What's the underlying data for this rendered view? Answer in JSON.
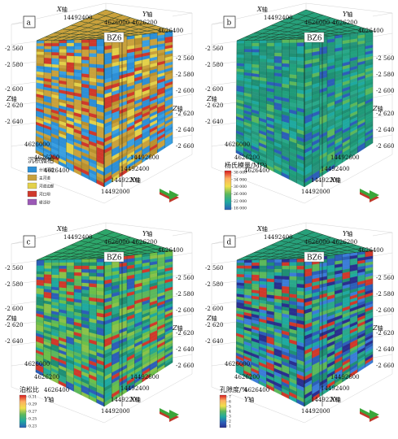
{
  "panels": [
    {
      "tag": "a",
      "well": "BZ6",
      "axes": {
        "x_name": "X",
        "y_name": "Y",
        "z_name": "Z",
        "unit": "轴",
        "x_top_ticks": [
          "14492400",
          "4626000"
        ],
        "y_top_ticks": [
          "4626200",
          "4626400"
        ],
        "z_left_ticks": [
          "-2 560",
          "-2 580",
          "-2 600",
          "-2 620",
          "-2 640"
        ],
        "z_right_ticks": [
          "-2 560",
          "-2 580",
          "-2 600",
          "-2 620",
          "-2 640",
          "-2 660"
        ],
        "bottom_left_ticks": [
          "4626000",
          "4626200",
          "4626400"
        ],
        "bottom_right_ticks": [
          "14492000",
          "14492200",
          "14492400",
          "14492600"
        ]
      },
      "legend": {
        "type": "categorical",
        "title": "沉积微相",
        "items": [
          {
            "label": "分流河道",
            "color": "#2d8fd6"
          },
          {
            "label": "主河道",
            "color": "#c9a13c"
          },
          {
            "label": "河道边部",
            "color": "#e3d14a"
          },
          {
            "label": "河口坝",
            "color": "#d0392b"
          },
          {
            "label": "堤泛砂",
            "color": "#9b59b6"
          }
        ]
      }
    },
    {
      "tag": "b",
      "well": "BZ6",
      "axes": {
        "x_name": "X",
        "y_name": "Y",
        "z_name": "Z",
        "unit": "轴",
        "x_top_ticks": [
          "14492400",
          "4626000"
        ],
        "y_top_ticks": [
          "4626200",
          "4626400"
        ],
        "z_left_ticks": [
          "-2 560",
          "-2 580",
          "-2 600",
          "-2 620",
          "-2 640"
        ],
        "z_right_ticks": [
          "-2 560",
          "-2 580",
          "-2 600",
          "-2 620",
          "-2 640",
          "-2 660"
        ],
        "bottom_left_ticks": [
          "4626000",
          "4626200",
          "4626400"
        ],
        "bottom_right_ticks": [
          "14492000",
          "14492200",
          "14492400",
          "14492600"
        ]
      },
      "legend": {
        "type": "continuous",
        "title": "杨氏模量/MPa",
        "ticks": [
          "38 000",
          "34 000",
          "30 000",
          "26 000",
          "22 000",
          "18 000"
        ],
        "colors": [
          "#d7191c",
          "#fdae61",
          "#f1e04b",
          "#5cb85c",
          "#1fa9a0",
          "#2c5fb8"
        ]
      }
    },
    {
      "tag": "c",
      "well": "BZ6",
      "axes": {
        "x_name": "X",
        "y_name": "Y",
        "z_name": "Z",
        "unit": "轴",
        "x_top_ticks": [
          "14492400",
          "4626000"
        ],
        "y_top_ticks": [
          "4626200",
          "4626400"
        ],
        "z_left_ticks": [
          "-2 560",
          "-2 580",
          "-2 600",
          "-2 620",
          "-2 640"
        ],
        "z_right_ticks": [
          "-2 560",
          "-2 580",
          "-2 600",
          "-2 620",
          "-2 640",
          "-2 660"
        ],
        "bottom_left_ticks": [
          "4626000",
          "4626200",
          "4626400"
        ],
        "bottom_right_ticks": [
          "14492000",
          "14492200",
          "14492400",
          "14492600"
        ]
      },
      "legend": {
        "type": "continuous",
        "title": "泊松比",
        "ticks": [
          "0.31",
          "0.29",
          "0.27",
          "0.25",
          "0.23"
        ],
        "colors": [
          "#d7191c",
          "#fdae61",
          "#f1e04b",
          "#5cb85c",
          "#1fa9a0",
          "#2c5fb8"
        ]
      }
    },
    {
      "tag": "d",
      "well": "BZ6",
      "axes": {
        "x_name": "X",
        "y_name": "Y",
        "z_name": "Z",
        "unit": "轴",
        "x_top_ticks": [
          "14492400",
          "4626000"
        ],
        "y_top_ticks": [
          "4626200",
          "4626400"
        ],
        "z_left_ticks": [
          "-2 560",
          "-2 580",
          "-2 600",
          "-2 620",
          "-2 640"
        ],
        "z_right_ticks": [
          "-2 560",
          "-2 580",
          "-2 600",
          "-2 620",
          "-2 640",
          "-2 660"
        ],
        "bottom_left_ticks": [
          "4626000",
          "4626200",
          "4626400"
        ],
        "bottom_right_ticks": [
          "14492000",
          "14492200",
          "14492400",
          "14492600"
        ]
      },
      "legend": {
        "type": "continuous",
        "title": "孔隙度/%",
        "ticks": [
          "7",
          "6",
          "5",
          "4",
          "3",
          "2",
          "1"
        ],
        "colors": [
          "#d7191c",
          "#fdae61",
          "#f1e04b",
          "#5cb85c",
          "#1fa9a0",
          "#2c5fb8",
          "#2a2f8f"
        ]
      }
    }
  ],
  "compass": {
    "arrow_top": "#3aa63a",
    "arrow_bottom": "#c0392b"
  }
}
